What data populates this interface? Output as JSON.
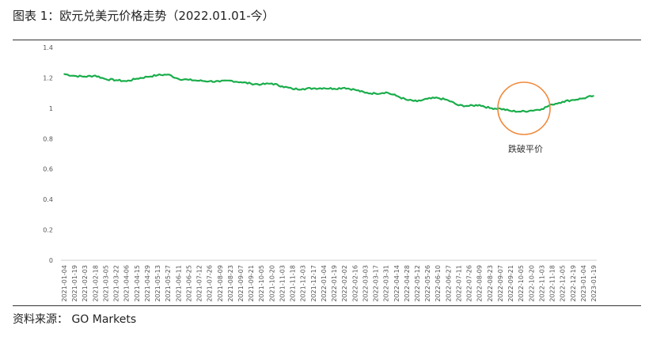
{
  "header": {
    "title": "图表 1：欧元兑美元价格走势（2022.01.01-今）"
  },
  "footer": {
    "source": "资料来源： GO Markets"
  },
  "colors": {
    "series": "#1aad4b",
    "annotation_circle": "#f08a3c",
    "axis": "#cccccc"
  },
  "chart_data": {
    "type": "line",
    "title": "",
    "xlabel": "",
    "ylabel": "",
    "ylim": [
      0,
      1.4
    ],
    "yticks": [
      "0",
      "0.2",
      "0.4",
      "0.6",
      "0.8",
      "1",
      "1.2",
      "1.4"
    ],
    "grid": false,
    "x_labels": [
      "2021-01-04",
      "2021-01-19",
      "2021-02-03",
      "2021-02-18",
      "2021-03-05",
      "2021-03-22",
      "2021-04-06",
      "2021-04-15",
      "2021-04-29",
      "2021-05-13",
      "2021-05-27",
      "2021-06-11",
      "2021-06-25",
      "2021-07-12",
      "2021-07-26",
      "2021-08-09",
      "2021-08-23",
      "2021-09-07",
      "2021-09-21",
      "2021-10-05",
      "2021-10-20",
      "2021-11-03",
      "2021-11-18",
      "2021-12-03",
      "2021-12-17",
      "2022-01-04",
      "2022-01-19",
      "2022-02-02",
      "2022-02-16",
      "2022-03-03",
      "2022-03-17",
      "2022-03-31",
      "2022-04-14",
      "2022-04-28",
      "2022-05-12",
      "2022-05-26",
      "2022-06-10",
      "2022-06-27",
      "2022-07-11",
      "2022-07-26",
      "2022-08-09",
      "2022-08-23",
      "2022-09-07",
      "2022-09-21",
      "2022-10-05",
      "2022-10-20",
      "2022-11-03",
      "2022-11-18",
      "2022-12-05",
      "2022-12-19",
      "2023-01-04",
      "2023-01-19"
    ],
    "series": [
      {
        "values": [
          1.225,
          1.213,
          1.208,
          1.215,
          1.192,
          1.185,
          1.178,
          1.195,
          1.207,
          1.218,
          1.222,
          1.194,
          1.187,
          1.181,
          1.178,
          1.175,
          1.182,
          1.172,
          1.162,
          1.157,
          1.163,
          1.145,
          1.127,
          1.128,
          1.131,
          1.133,
          1.129,
          1.135,
          1.122,
          1.102,
          1.097,
          1.105,
          1.082,
          1.055,
          1.045,
          1.062,
          1.068,
          1.052,
          1.019,
          1.015,
          1.022,
          1.001,
          0.998,
          0.982,
          0.978,
          0.985,
          0.995,
          1.025,
          1.043,
          1.055,
          1.065,
          1.082
        ]
      }
    ],
    "annotations": [
      {
        "text": "跌破平价",
        "shape": "circle"
      }
    ]
  }
}
